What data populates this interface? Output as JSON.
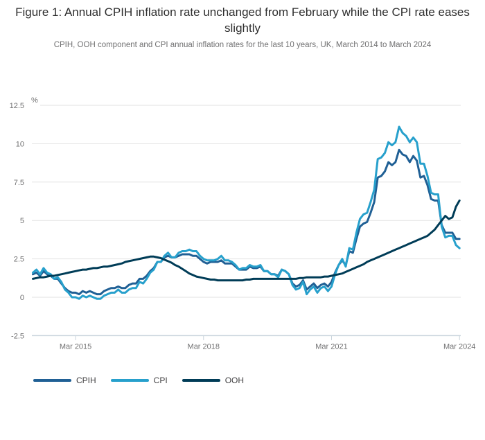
{
  "figure": {
    "title": "Figure 1: Annual CPIH inflation rate unchanged from February while the CPI rate eases slightly",
    "subtitle": "CPIH, OOH component and CPI annual inflation rates for the last 10 years, UK, March 2014 to March 2024",
    "unit_label": "%"
  },
  "legend": [
    {
      "label": "CPIH",
      "color": "#206095"
    },
    {
      "label": "CPI",
      "color": "#27a0cc"
    },
    {
      "label": "OOH",
      "color": "#003c57"
    }
  ],
  "colors": {
    "cpih": "#206095",
    "cpi": "#27a0cc",
    "ooh": "#003c57",
    "gridline": "#e2e2e2",
    "axis": "#c9d4dc",
    "tick_text": "#707071",
    "title_text": "#2e2e2e"
  },
  "chart_data": {
    "type": "line",
    "title": "Figure 1: Annual CPIH inflation rate unchanged from February while the CPI rate eases slightly",
    "subtitle": "CPIH, OOH component and CPI annual inflation rates for the last 10 years, UK, March 2014 to March 2024",
    "xlabel": "",
    "ylabel": "%",
    "x_start": "March 2014",
    "x_end": "March 2024",
    "x_frequency": "monthly",
    "ylim": [
      -2.5,
      12.5
    ],
    "grid": true,
    "legend_position": "bottom-left",
    "yticks": [
      {
        "value": -2.5,
        "label": "-2.5"
      },
      {
        "value": 0,
        "label": "0"
      },
      {
        "value": 2.5,
        "label": "2.5"
      },
      {
        "value": 5,
        "label": "5"
      },
      {
        "value": 7.5,
        "label": "7.5"
      },
      {
        "value": 10,
        "label": "10"
      },
      {
        "value": 12.5,
        "label": "12.5"
      }
    ],
    "xticks": [
      {
        "label": "Mar 2015",
        "month_index": 12
      },
      {
        "label": "Mar 2018",
        "month_index": 48
      },
      {
        "label": "Mar 2021",
        "month_index": 84
      },
      {
        "label": "Mar 2024",
        "month_index": 120
      }
    ],
    "series": [
      {
        "name": "CPIH",
        "color": "#206095",
        "values": [
          1.5,
          1.6,
          1.4,
          1.7,
          1.5,
          1.4,
          1.2,
          1.2,
          0.9,
          0.6,
          0.4,
          0.3,
          0.3,
          0.2,
          0.4,
          0.3,
          0.4,
          0.3,
          0.2,
          0.2,
          0.4,
          0.5,
          0.6,
          0.6,
          0.7,
          0.6,
          0.6,
          0.8,
          0.9,
          0.9,
          1.2,
          1.2,
          1.4,
          1.7,
          1.9,
          2.3,
          2.3,
          2.6,
          2.7,
          2.6,
          2.6,
          2.7,
          2.8,
          2.8,
          2.8,
          2.7,
          2.7,
          2.5,
          2.3,
          2.2,
          2.3,
          2.3,
          2.3,
          2.4,
          2.2,
          2.2,
          2.2,
          2.0,
          1.8,
          1.8,
          1.8,
          2.0,
          1.9,
          1.9,
          2.0,
          1.7,
          1.7,
          1.5,
          1.5,
          1.4,
          1.8,
          1.7,
          1.5,
          0.9,
          0.7,
          0.8,
          1.1,
          0.5,
          0.7,
          0.9,
          0.6,
          0.8,
          0.9,
          0.7,
          1.0,
          1.6,
          2.1,
          2.4,
          2.1,
          3.0,
          2.9,
          3.8,
          4.6,
          4.8,
          4.9,
          5.5,
          6.2,
          7.8,
          7.9,
          8.2,
          8.8,
          8.6,
          8.8,
          9.6,
          9.3,
          9.2,
          8.8,
          9.2,
          8.9,
          7.8,
          7.9,
          7.3,
          6.4,
          6.3,
          6.3,
          4.7,
          4.2,
          4.2,
          4.2,
          3.8,
          3.8
        ]
      },
      {
        "name": "CPI",
        "color": "#27a0cc",
        "values": [
          1.6,
          1.8,
          1.5,
          1.9,
          1.6,
          1.5,
          1.2,
          1.3,
          1.0,
          0.5,
          0.3,
          0.0,
          0.0,
          -0.1,
          0.1,
          0.0,
          0.1,
          0.0,
          -0.1,
          -0.1,
          0.1,
          0.2,
          0.3,
          0.3,
          0.5,
          0.3,
          0.3,
          0.5,
          0.6,
          0.6,
          1.0,
          0.9,
          1.2,
          1.6,
          1.8,
          2.3,
          2.3,
          2.7,
          2.9,
          2.6,
          2.6,
          2.9,
          3.0,
          3.0,
          3.1,
          3.0,
          3.0,
          2.7,
          2.5,
          2.4,
          2.4,
          2.4,
          2.5,
          2.7,
          2.4,
          2.4,
          2.3,
          2.1,
          1.8,
          1.9,
          1.9,
          2.1,
          2.0,
          2.0,
          2.1,
          1.7,
          1.7,
          1.5,
          1.5,
          1.3,
          1.8,
          1.7,
          1.5,
          0.8,
          0.5,
          0.6,
          1.0,
          0.2,
          0.5,
          0.7,
          0.3,
          0.6,
          0.7,
          0.4,
          0.7,
          1.5,
          2.1,
          2.5,
          2.0,
          3.2,
          3.1,
          4.2,
          5.1,
          5.4,
          5.5,
          6.2,
          7.0,
          9.0,
          9.1,
          9.4,
          10.1,
          9.9,
          10.1,
          11.1,
          10.7,
          10.5,
          10.1,
          10.4,
          10.1,
          8.7,
          8.7,
          7.9,
          6.8,
          6.7,
          6.7,
          4.6,
          3.9,
          4.0,
          4.0,
          3.4,
          3.2
        ]
      },
      {
        "name": "OOH",
        "color": "#003c57",
        "values": [
          1.2,
          1.25,
          1.3,
          1.3,
          1.35,
          1.4,
          1.4,
          1.45,
          1.5,
          1.55,
          1.6,
          1.65,
          1.7,
          1.75,
          1.8,
          1.8,
          1.85,
          1.9,
          1.9,
          1.95,
          2.0,
          2.0,
          2.05,
          2.1,
          2.15,
          2.2,
          2.3,
          2.35,
          2.4,
          2.45,
          2.5,
          2.55,
          2.6,
          2.65,
          2.65,
          2.6,
          2.55,
          2.45,
          2.35,
          2.25,
          2.1,
          2.0,
          1.85,
          1.7,
          1.55,
          1.45,
          1.35,
          1.3,
          1.25,
          1.2,
          1.15,
          1.15,
          1.1,
          1.1,
          1.1,
          1.1,
          1.1,
          1.1,
          1.1,
          1.1,
          1.15,
          1.15,
          1.2,
          1.2,
          1.2,
          1.2,
          1.2,
          1.2,
          1.2,
          1.2,
          1.2,
          1.2,
          1.2,
          1.2,
          1.2,
          1.25,
          1.25,
          1.3,
          1.3,
          1.3,
          1.3,
          1.3,
          1.35,
          1.35,
          1.4,
          1.45,
          1.5,
          1.55,
          1.65,
          1.75,
          1.85,
          1.95,
          2.05,
          2.15,
          2.3,
          2.4,
          2.5,
          2.6,
          2.7,
          2.8,
          2.9,
          3.0,
          3.1,
          3.2,
          3.3,
          3.4,
          3.5,
          3.6,
          3.7,
          3.8,
          3.9,
          4.0,
          4.2,
          4.4,
          4.7,
          5.0,
          5.3,
          5.1,
          5.2,
          5.9,
          6.3
        ]
      }
    ]
  }
}
